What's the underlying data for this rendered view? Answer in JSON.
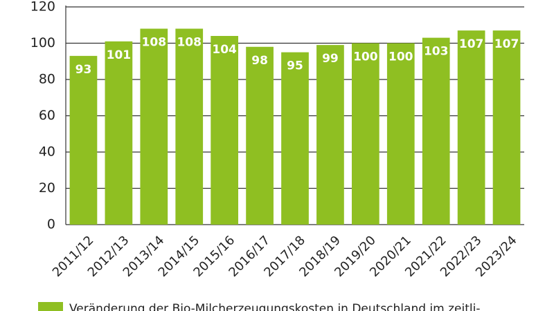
{
  "chart_data": {
    "type": "bar",
    "categories": [
      "2011/12",
      "2012/13",
      "2013/14",
      "2014/15",
      "2015/16",
      "2016/17",
      "2017/18",
      "2018/19",
      "2019/20",
      "2020/21",
      "2021/22",
      "2022/23",
      "2023/24"
    ],
    "series": [
      {
        "name": "Veränderung der Bio-Milcherzeugungskosten in Deutschland im zeitli-",
        "color": "#8fbf22",
        "values": [
          93,
          101,
          108,
          108,
          104,
          98,
          95,
          99,
          100,
          100,
          103,
          107,
          107
        ]
      }
    ],
    "ylim": [
      0,
      120
    ],
    "yticks": [
      0,
      20,
      40,
      60,
      80,
      100,
      120
    ],
    "grid": true
  }
}
